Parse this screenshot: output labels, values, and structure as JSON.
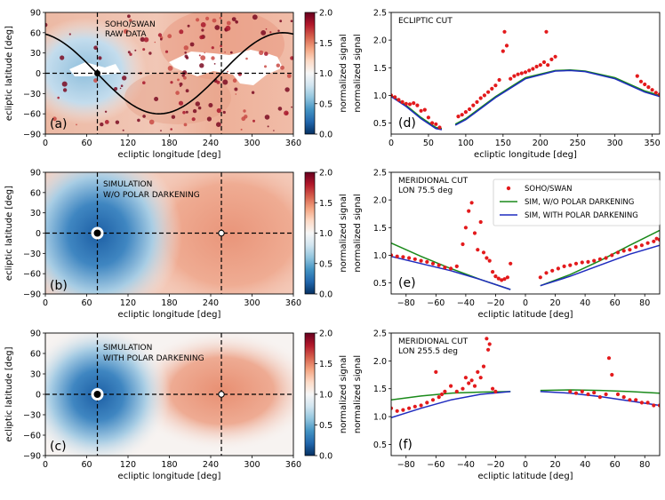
{
  "figure": {
    "colorbar": {
      "label": "normalized signal",
      "ticks": [
        "2.0",
        "1.5",
        "1.0",
        "0.5",
        "0.0"
      ],
      "range": [
        0,
        2
      ],
      "colormap": [
        "#67001f",
        "#b2182b",
        "#d6604d",
        "#f4a582",
        "#fddbc7",
        "#f7f7f7",
        "#d1e5f0",
        "#92c5de",
        "#4393c3",
        "#2166ac",
        "#053061"
      ]
    },
    "map_xlabel": "ecliptic longitude [deg]",
    "map_ylabel": "ecliptic latitude [deg]",
    "map_xticks": [
      "0",
      "60",
      "120",
      "180",
      "240",
      "300",
      "360"
    ],
    "map_yticks": [
      "90",
      "60",
      "30",
      "0",
      "−30",
      "−60",
      "−90"
    ],
    "guide_longitudes": [
      75.5,
      255.5
    ],
    "guide_latitude": 0
  },
  "chart_data": [
    {
      "id": "a",
      "type": "heatmap",
      "panel_label": "(a)",
      "title_lines": [
        "SOHO/SWAN",
        "RAW DATA"
      ],
      "xlabel": "ecliptic longitude [deg]",
      "ylabel": "ecliptic latitude [deg]",
      "xlim": [
        0,
        360
      ],
      "ylim": [
        -90,
        90
      ],
      "overlay": "ecliptic-equator sine curve (black line), markers at (75.5, 0) and (255.5, 0)"
    },
    {
      "id": "b",
      "type": "heatmap",
      "panel_label": "(b)",
      "title_lines": [
        "SIMULATION",
        "W/O POLAR DARKENING"
      ],
      "xlabel": "ecliptic longitude [deg]",
      "ylabel": "ecliptic latitude [deg]",
      "xlim": [
        0,
        360
      ],
      "ylim": [
        -90,
        90
      ]
    },
    {
      "id": "c",
      "type": "heatmap",
      "panel_label": "(c)",
      "title_lines": [
        "SIMULATION",
        "WITH POLAR DARKENING"
      ],
      "xlabel": "ecliptic longitude [deg]",
      "ylabel": "ecliptic latitude [deg]",
      "xlim": [
        0,
        360
      ],
      "ylim": [
        -90,
        90
      ]
    },
    {
      "id": "d",
      "type": "scatter",
      "panel_label": "(d)",
      "title_lines": [
        "ECLIPTIC CUT"
      ],
      "xlabel": "ecliptic longitude [deg]",
      "ylabel": "normalized signal",
      "xlim": [
        0,
        360
      ],
      "ylim": [
        0.3,
        2.5
      ],
      "xticks": [
        "0",
        "50",
        "100",
        "150",
        "200",
        "250",
        "300",
        "350"
      ],
      "yticks": [
        "2.5",
        "2.0",
        "1.5",
        "1.0",
        "0.5"
      ],
      "series": [
        {
          "name": "SOHO/SWAN",
          "kind": "points",
          "color": "#e31a1c",
          "x": [
            0,
            5,
            10,
            15,
            20,
            25,
            30,
            35,
            40,
            45,
            50,
            55,
            60,
            65,
            90,
            95,
            100,
            105,
            110,
            115,
            120,
            125,
            130,
            135,
            140,
            145,
            150,
            152,
            155,
            160,
            165,
            170,
            175,
            180,
            185,
            190,
            195,
            200,
            205,
            208,
            210,
            215,
            220,
            330,
            335,
            340,
            345,
            350,
            355,
            360
          ],
          "y": [
            1.0,
            0.97,
            0.92,
            0.88,
            0.85,
            0.84,
            0.86,
            0.82,
            0.72,
            0.74,
            0.6,
            0.5,
            0.48,
            0.42,
            0.62,
            0.65,
            0.7,
            0.75,
            0.82,
            0.88,
            0.95,
            1.0,
            1.06,
            1.12,
            1.18,
            1.28,
            1.8,
            2.15,
            1.9,
            1.3,
            1.35,
            1.38,
            1.4,
            1.42,
            1.45,
            1.48,
            1.52,
            1.55,
            1.6,
            2.15,
            1.55,
            1.65,
            1.7,
            1.35,
            1.25,
            1.2,
            1.15,
            1.1,
            1.05,
            1.02
          ]
        },
        {
          "name": "SIM, W/O POLAR DARKENING",
          "kind": "line",
          "color": "#1a8a1a",
          "x": [
            0,
            20,
            40,
            60,
            68,
            null,
            86,
            100,
            140,
            180,
            220,
            240,
            260,
            300,
            340,
            360
          ],
          "y": [
            1.0,
            0.82,
            0.6,
            0.42,
            0.4,
            null,
            0.48,
            0.58,
            0.98,
            1.32,
            1.45,
            1.46,
            1.44,
            1.32,
            1.08,
            1.0
          ]
        },
        {
          "name": "SIM, WITH POLAR DARKENING",
          "kind": "line",
          "color": "#1f2bbf",
          "x": [
            0,
            20,
            40,
            60,
            68,
            null,
            86,
            100,
            140,
            180,
            220,
            240,
            260,
            300,
            340,
            360
          ],
          "y": [
            0.98,
            0.8,
            0.58,
            0.4,
            0.38,
            null,
            0.46,
            0.56,
            0.96,
            1.3,
            1.44,
            1.45,
            1.43,
            1.3,
            1.06,
            0.98
          ]
        }
      ]
    },
    {
      "id": "e",
      "type": "scatter",
      "panel_label": "(e)",
      "title_lines": [
        "MERIDIONAL CUT",
        "LON 75.5 deg"
      ],
      "xlabel": "ecliptic latitude [deg]",
      "ylabel": "normalized signal",
      "xlim": [
        -90,
        90
      ],
      "ylim": [
        0.3,
        2.5
      ],
      "xticks": [
        "−80",
        "−60",
        "−40",
        "−20",
        "0",
        "20",
        "40",
        "60",
        "80"
      ],
      "yticks": [
        "2.5",
        "2.0",
        "1.5",
        "1.0",
        "0.5"
      ],
      "legend": [
        "SOHO/SWAN",
        "SIM, W/O POLAR DARKENING",
        "SIM, WITH POLAR DARKENING"
      ],
      "series": [
        {
          "name": "SOHO/SWAN",
          "kind": "points",
          "color": "#e31a1c",
          "x": [
            -90,
            -86,
            -82,
            -78,
            -74,
            -70,
            -66,
            -62,
            -58,
            -54,
            -50,
            -46,
            -42,
            -40,
            -38,
            -36,
            -34,
            -32,
            -30,
            -28,
            -26,
            -24,
            -22,
            -20,
            -18,
            -16,
            -14,
            -12,
            -10,
            10,
            14,
            18,
            22,
            26,
            30,
            34,
            38,
            42,
            46,
            50,
            54,
            58,
            62,
            66,
            70,
            74,
            78,
            82,
            86,
            88,
            90
          ],
          "y": [
            1.0,
            0.98,
            0.97,
            0.95,
            0.93,
            0.9,
            0.88,
            0.85,
            0.82,
            0.78,
            0.76,
            0.8,
            1.2,
            1.5,
            1.8,
            1.95,
            1.4,
            1.1,
            1.6,
            1.05,
            0.95,
            0.9,
            0.7,
            0.62,
            0.58,
            0.55,
            0.57,
            0.6,
            0.85,
            0.6,
            0.68,
            0.72,
            0.76,
            0.8,
            0.82,
            0.85,
            0.87,
            0.88,
            0.9,
            0.93,
            0.95,
            1.0,
            1.05,
            1.08,
            1.1,
            1.15,
            1.18,
            1.22,
            1.25,
            1.3,
            1.28
          ]
        },
        {
          "name": "SIM, W/O POLAR DARKENING",
          "kind": "line",
          "color": "#1a8a1a",
          "x": [
            -90,
            -70,
            -50,
            -30,
            -10,
            null,
            10,
            30,
            50,
            70,
            90
          ],
          "y": [
            1.22,
            0.98,
            0.76,
            0.56,
            0.38,
            null,
            0.45,
            0.65,
            0.9,
            1.18,
            1.45
          ]
        },
        {
          "name": "SIM, WITH POLAR DARKENING",
          "kind": "line",
          "color": "#1f2bbf",
          "x": [
            -90,
            -70,
            -50,
            -30,
            -10,
            null,
            10,
            30,
            50,
            70,
            90
          ],
          "y": [
            0.98,
            0.85,
            0.72,
            0.56,
            0.38,
            null,
            0.45,
            0.62,
            0.82,
            1.02,
            1.18
          ]
        }
      ]
    },
    {
      "id": "f",
      "type": "scatter",
      "panel_label": "(f)",
      "title_lines": [
        "MERIDIONAL CUT",
        "LON 255.5 deg"
      ],
      "xlabel": "ecliptic latitude [deg]",
      "ylabel": "normalized signal",
      "xlim": [
        -90,
        90
      ],
      "ylim": [
        0.3,
        2.5
      ],
      "xticks": [
        "−80",
        "−60",
        "−40",
        "−20",
        "0",
        "20",
        "40",
        "60",
        "80"
      ],
      "yticks": [
        "2.5",
        "2.0",
        "1.5",
        "1.0",
        "0.5"
      ],
      "series": [
        {
          "name": "SOHO/SWAN",
          "kind": "points",
          "color": "#e31a1c",
          "x": [
            -90,
            -86,
            -82,
            -78,
            -74,
            -70,
            -66,
            -62,
            -60,
            -58,
            -56,
            -54,
            -50,
            -46,
            -42,
            -40,
            -38,
            -36,
            -34,
            -32,
            -30,
            -28,
            -26,
            -25,
            -24,
            -22,
            -20,
            30,
            34,
            38,
            42,
            46,
            50,
            54,
            56,
            58,
            62,
            66,
            70,
            74,
            78,
            82,
            86,
            90
          ],
          "y": [
            1.15,
            1.1,
            1.12,
            1.15,
            1.18,
            1.2,
            1.25,
            1.3,
            1.8,
            1.35,
            1.4,
            1.45,
            1.55,
            1.45,
            1.5,
            1.7,
            1.6,
            1.65,
            1.55,
            1.8,
            1.7,
            1.9,
            2.4,
            2.2,
            2.3,
            1.5,
            1.45,
            1.45,
            1.42,
            1.45,
            1.4,
            1.43,
            1.35,
            1.4,
            2.05,
            1.75,
            1.4,
            1.35,
            1.3,
            1.3,
            1.25,
            1.25,
            1.2,
            1.2
          ]
        },
        {
          "name": "SIM, W/O POLAR DARKENING",
          "kind": "line",
          "color": "#1a8a1a",
          "x": [
            -90,
            -70,
            -50,
            -30,
            -10,
            null,
            10,
            30,
            50,
            70,
            90
          ],
          "y": [
            1.3,
            1.37,
            1.42,
            1.44,
            1.45,
            null,
            1.47,
            1.48,
            1.47,
            1.45,
            1.42
          ]
        },
        {
          "name": "SIM, WITH POLAR DARKENING",
          "kind": "line",
          "color": "#1f2bbf",
          "x": [
            -90,
            -70,
            -50,
            -30,
            -10,
            null,
            10,
            30,
            50,
            70,
            90
          ],
          "y": [
            0.98,
            1.15,
            1.3,
            1.4,
            1.45,
            null,
            1.45,
            1.42,
            1.36,
            1.28,
            1.2
          ]
        }
      ]
    }
  ]
}
